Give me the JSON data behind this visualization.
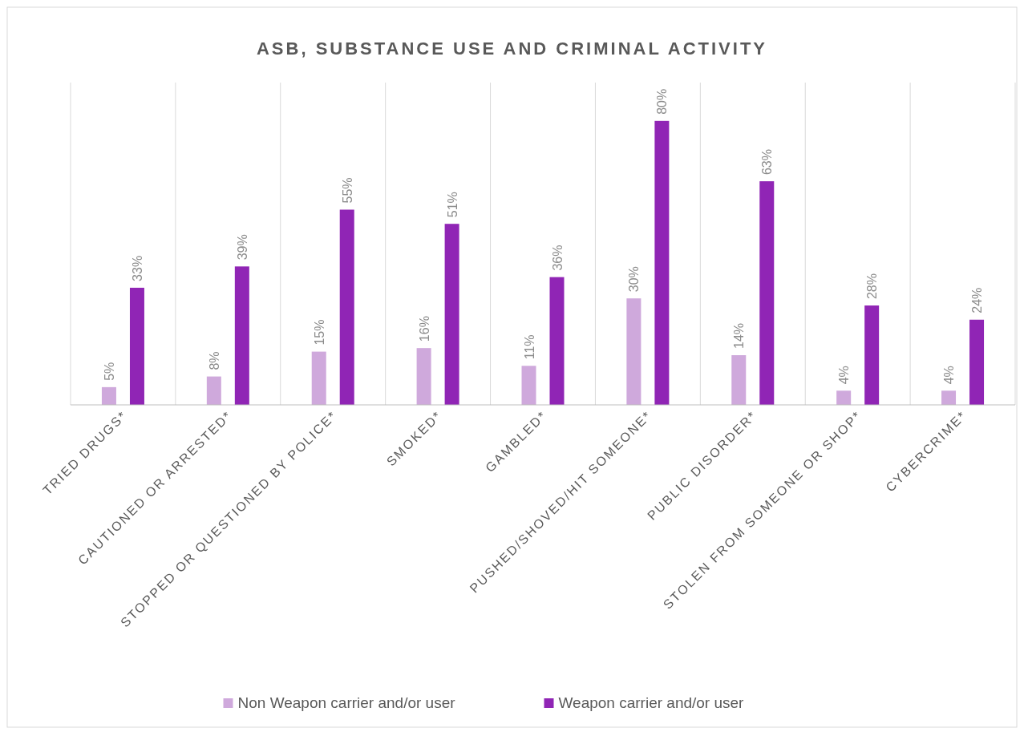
{
  "chart_data": {
    "type": "bar",
    "title": "ASB, SUBSTANCE USE AND CRIMINAL ACTIVITY",
    "categories": [
      "TRIED DRUGS*",
      "CAUTIONED OR ARRESTED*",
      "STOPPED OR QUESTIONED BY POLICE*",
      "SMOKED*",
      "GAMBLED*",
      "PUSHED/SHOVED/HIT SOMEONE*",
      "PUBLIC DISORDER*",
      "STOLEN FROM SOMEONE OR SHOP*",
      "CYBERCRIME*"
    ],
    "series": [
      {
        "name": "Non Weapon carrier and/or user",
        "color": "#cfa9dc",
        "values": [
          5,
          8,
          15,
          16,
          11,
          30,
          14,
          4,
          4
        ],
        "value_labels": [
          "5%",
          "8%",
          "15%",
          "16%",
          "11%",
          "30%",
          "14%",
          "4%",
          "4%"
        ]
      },
      {
        "name": "Weapon carrier and/or user",
        "color": "#9025b5",
        "values": [
          33,
          39,
          55,
          51,
          36,
          80,
          63,
          28,
          24
        ],
        "value_labels": [
          "33%",
          "39%",
          "55%",
          "51%",
          "36%",
          "80%",
          "63%",
          "28%",
          "24%"
        ]
      }
    ],
    "grid": "x",
    "legend": "bottom"
  }
}
